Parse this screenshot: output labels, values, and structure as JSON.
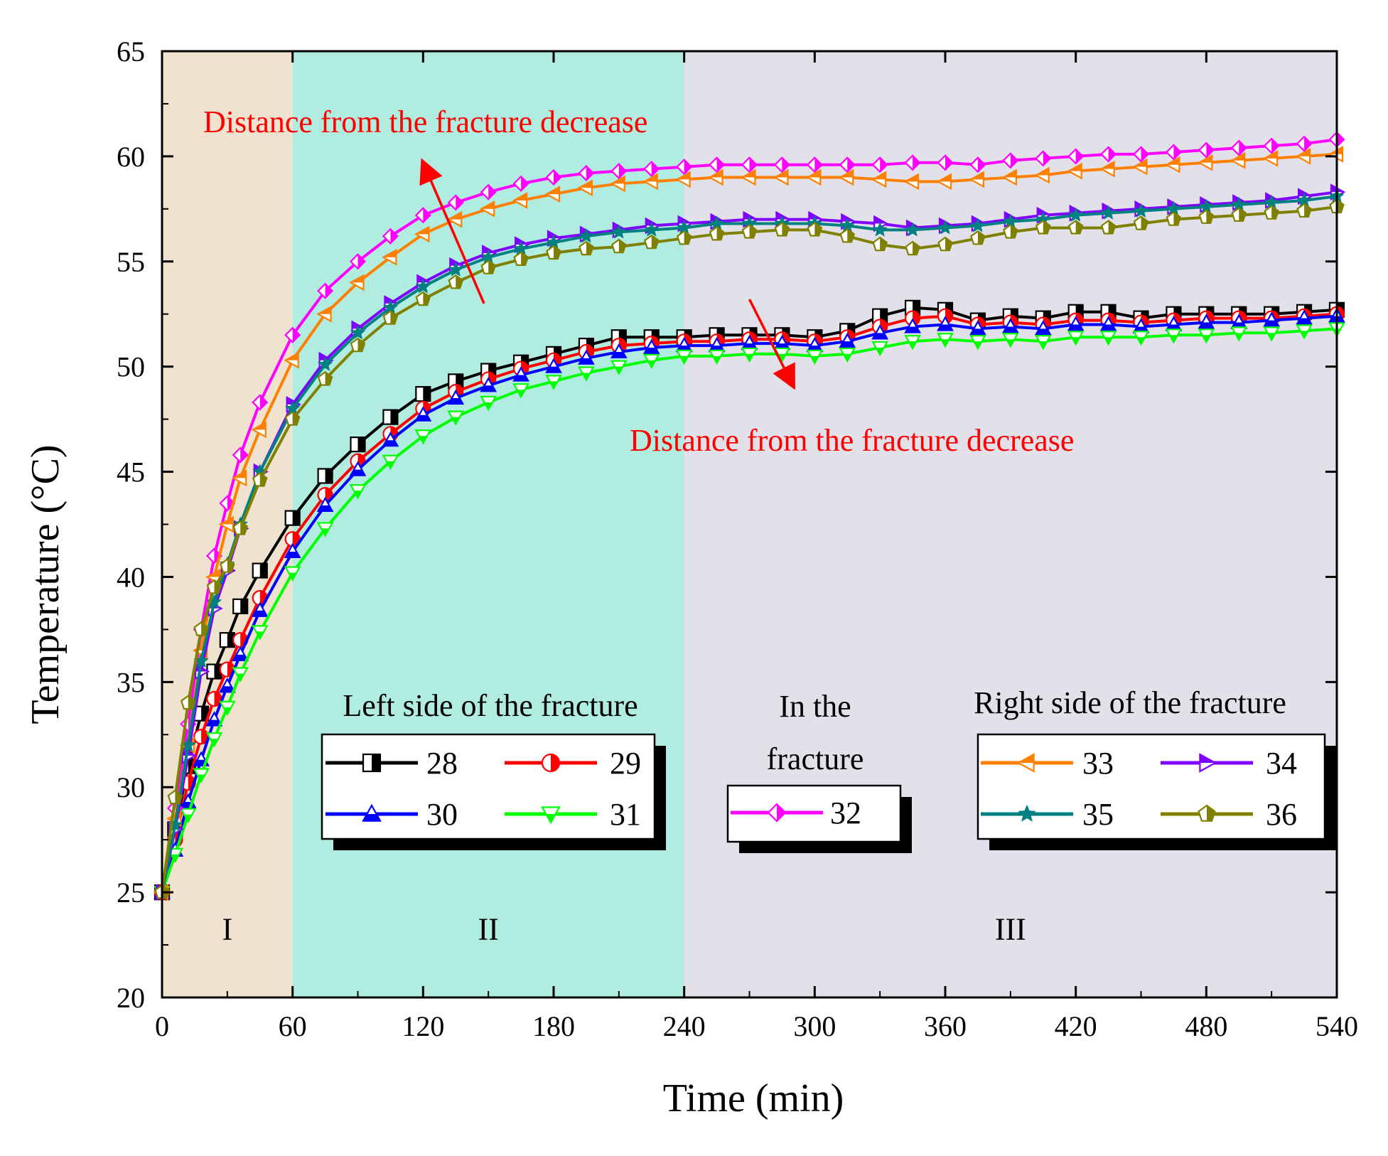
{
  "chart_data": {
    "type": "line",
    "title": "",
    "xlabel": "Time (min)",
    "ylabel": "Temperature (°C)",
    "xlim": [
      0,
      540
    ],
    "ylim": [
      20,
      65
    ],
    "xticks": [
      0,
      60,
      120,
      180,
      240,
      300,
      360,
      420,
      480,
      540
    ],
    "yticks": [
      20,
      25,
      30,
      35,
      40,
      45,
      50,
      55,
      60,
      65
    ],
    "xtick_labels": [
      "0",
      "60",
      "120",
      "180",
      "240",
      "300",
      "360",
      "420",
      "480",
      "540"
    ],
    "ytick_labels": [
      "20",
      "25",
      "30",
      "35",
      "40",
      "45",
      "50",
      "55",
      "60",
      "65"
    ],
    "regions": [
      {
        "label": "I",
        "start": 0,
        "end": 60,
        "color": "#efe2cf"
      },
      {
        "label": "II",
        "start": 60,
        "end": 240,
        "color": "#b0ece0"
      },
      {
        "label": "III",
        "start": 240,
        "end": 540,
        "color": "#e2e1ea"
      }
    ],
    "annotations": [
      {
        "text": "Distance from the fracture decrease",
        "color": "#ff0000",
        "arrow": "up",
        "arrow_from": [
          148,
          53
        ],
        "arrow_to": [
          120,
          59.7
        ]
      },
      {
        "text": "Distance from the fracture decrease",
        "color": "#ff0000",
        "arrow": "down",
        "arrow_from": [
          270,
          53.2
        ],
        "arrow_to": [
          290,
          49.1
        ]
      }
    ],
    "legend_groups": [
      {
        "title": "Left side of the fracture",
        "series": [
          "28",
          "29",
          "30",
          "31"
        ]
      },
      {
        "title": "In the fracture",
        "title_lines": [
          "In the",
          "fracture"
        ],
        "series": [
          "32"
        ]
      },
      {
        "title": "Right side of the fracture",
        "series": [
          "33",
          "34",
          "35",
          "36"
        ]
      }
    ],
    "series": [
      {
        "name": "28",
        "color": "#000000",
        "marker": "square-half",
        "x": [
          0,
          6,
          12,
          18,
          24,
          30,
          36,
          45,
          60,
          75,
          90,
          105,
          120,
          135,
          150,
          165,
          180,
          195,
          210,
          225,
          240,
          255,
          270,
          285,
          300,
          315,
          330,
          345,
          360,
          375,
          390,
          405,
          420,
          435,
          450,
          465,
          480,
          495,
          510,
          525,
          540
        ],
        "values": [
          25.0,
          28.0,
          31.0,
          33.5,
          35.5,
          37.0,
          38.6,
          40.3,
          42.8,
          44.8,
          46.3,
          47.6,
          48.7,
          49.3,
          49.8,
          50.2,
          50.6,
          51.0,
          51.4,
          51.4,
          51.4,
          51.5,
          51.5,
          51.5,
          51.4,
          51.7,
          52.4,
          52.8,
          52.7,
          52.2,
          52.4,
          52.3,
          52.6,
          52.6,
          52.3,
          52.5,
          52.5,
          52.5,
          52.5,
          52.6,
          52.7
        ]
      },
      {
        "name": "29",
        "color": "#ff0000",
        "marker": "circle-half",
        "x": [
          0,
          6,
          12,
          18,
          24,
          30,
          36,
          45,
          60,
          75,
          90,
          105,
          120,
          135,
          150,
          165,
          180,
          195,
          210,
          225,
          240,
          255,
          270,
          285,
          300,
          315,
          330,
          345,
          360,
          375,
          390,
          405,
          420,
          435,
          450,
          465,
          480,
          495,
          510,
          525,
          540
        ],
        "values": [
          25.0,
          27.5,
          30.2,
          32.4,
          34.2,
          35.6,
          37.0,
          39.0,
          41.8,
          43.9,
          45.5,
          46.8,
          48.0,
          48.8,
          49.4,
          49.9,
          50.3,
          50.7,
          51.0,
          51.1,
          51.2,
          51.2,
          51.3,
          51.3,
          51.2,
          51.4,
          51.9,
          52.3,
          52.4,
          52.0,
          52.1,
          52.0,
          52.2,
          52.2,
          52.1,
          52.2,
          52.3,
          52.3,
          52.3,
          52.4,
          52.5
        ]
      },
      {
        "name": "30",
        "color": "#0000ff",
        "marker": "triangle-up-half",
        "x": [
          0,
          6,
          12,
          18,
          24,
          30,
          36,
          45,
          60,
          75,
          90,
          105,
          120,
          135,
          150,
          165,
          180,
          195,
          210,
          225,
          240,
          255,
          270,
          285,
          300,
          315,
          330,
          345,
          360,
          375,
          390,
          405,
          420,
          435,
          450,
          465,
          480,
          495,
          510,
          525,
          540
        ],
        "values": [
          25.0,
          27.0,
          29.3,
          31.3,
          33.2,
          34.8,
          36.3,
          38.4,
          41.2,
          43.4,
          45.1,
          46.5,
          47.7,
          48.5,
          49.1,
          49.6,
          50.0,
          50.4,
          50.7,
          50.9,
          51.0,
          51.0,
          51.1,
          51.1,
          51.0,
          51.2,
          51.6,
          51.9,
          52.0,
          51.8,
          51.9,
          51.8,
          52.0,
          52.0,
          51.9,
          52.0,
          52.1,
          52.1,
          52.2,
          52.3,
          52.4
        ]
      },
      {
        "name": "31",
        "color": "#00ff00",
        "marker": "triangle-down-half",
        "x": [
          0,
          6,
          12,
          18,
          24,
          30,
          36,
          45,
          60,
          75,
          90,
          105,
          120,
          135,
          150,
          165,
          180,
          195,
          210,
          225,
          240,
          255,
          270,
          285,
          300,
          315,
          330,
          345,
          360,
          375,
          390,
          405,
          420,
          435,
          450,
          465,
          480,
          495,
          510,
          525,
          540
        ],
        "values": [
          25.0,
          26.8,
          28.7,
          30.6,
          32.3,
          33.8,
          35.4,
          37.4,
          40.2,
          42.3,
          44.1,
          45.5,
          46.7,
          47.6,
          48.3,
          48.9,
          49.3,
          49.7,
          50.0,
          50.3,
          50.5,
          50.5,
          50.6,
          50.6,
          50.5,
          50.6,
          50.9,
          51.2,
          51.3,
          51.2,
          51.3,
          51.2,
          51.4,
          51.4,
          51.4,
          51.5,
          51.5,
          51.6,
          51.6,
          51.7,
          51.8
        ]
      },
      {
        "name": "32",
        "color": "#ff00ff",
        "marker": "diamond-half",
        "x": [
          0,
          6,
          12,
          18,
          24,
          30,
          36,
          45,
          60,
          75,
          90,
          105,
          120,
          135,
          150,
          165,
          180,
          195,
          210,
          225,
          240,
          255,
          270,
          285,
          300,
          315,
          330,
          345,
          360,
          375,
          390,
          405,
          420,
          435,
          450,
          465,
          480,
          495,
          510,
          525,
          540
        ],
        "values": [
          25.0,
          29.0,
          33.0,
          37.5,
          41.0,
          43.5,
          45.8,
          48.3,
          51.5,
          53.6,
          55.0,
          56.2,
          57.2,
          57.8,
          58.3,
          58.7,
          59.0,
          59.2,
          59.3,
          59.4,
          59.5,
          59.6,
          59.6,
          59.6,
          59.6,
          59.6,
          59.6,
          59.7,
          59.7,
          59.6,
          59.8,
          59.9,
          60.0,
          60.1,
          60.1,
          60.2,
          60.3,
          60.4,
          60.5,
          60.6,
          60.8
        ]
      },
      {
        "name": "33",
        "color": "#ff8000",
        "marker": "triangle-left-half",
        "x": [
          0,
          6,
          12,
          18,
          24,
          30,
          36,
          45,
          60,
          75,
          90,
          105,
          120,
          135,
          150,
          165,
          180,
          195,
          210,
          225,
          240,
          255,
          270,
          285,
          300,
          315,
          330,
          345,
          360,
          375,
          390,
          405,
          420,
          435,
          450,
          465,
          480,
          495,
          510,
          525,
          540
        ],
        "values": [
          25.0,
          28.5,
          32.0,
          36.5,
          40.0,
          42.5,
          44.7,
          47.0,
          50.3,
          52.5,
          54.0,
          55.2,
          56.3,
          57.0,
          57.5,
          57.9,
          58.2,
          58.5,
          58.7,
          58.8,
          58.9,
          59.0,
          59.0,
          59.0,
          59.0,
          59.0,
          58.9,
          58.8,
          58.8,
          58.9,
          59.0,
          59.1,
          59.3,
          59.4,
          59.5,
          59.6,
          59.7,
          59.8,
          59.9,
          60.0,
          60.1
        ]
      },
      {
        "name": "34",
        "color": "#8000ff",
        "marker": "triangle-right-half",
        "x": [
          0,
          6,
          12,
          18,
          24,
          30,
          36,
          45,
          60,
          75,
          90,
          105,
          120,
          135,
          150,
          165,
          180,
          195,
          210,
          225,
          240,
          255,
          270,
          285,
          300,
          315,
          330,
          345,
          360,
          375,
          390,
          405,
          420,
          435,
          450,
          465,
          480,
          495,
          510,
          525,
          540
        ],
        "values": [
          25.0,
          28.0,
          31.5,
          35.5,
          38.5,
          40.3,
          42.3,
          45.0,
          48.2,
          50.3,
          51.8,
          53.0,
          54.0,
          54.8,
          55.4,
          55.8,
          56.1,
          56.3,
          56.5,
          56.7,
          56.8,
          56.9,
          57.0,
          57.0,
          57.0,
          56.9,
          56.8,
          56.6,
          56.7,
          56.8,
          57.0,
          57.2,
          57.3,
          57.4,
          57.5,
          57.6,
          57.7,
          57.8,
          57.9,
          58.1,
          58.3
        ]
      },
      {
        "name": "35",
        "color": "#008080",
        "marker": "star",
        "x": [
          0,
          6,
          12,
          18,
          24,
          30,
          36,
          45,
          60,
          75,
          90,
          105,
          120,
          135,
          150,
          165,
          180,
          195,
          210,
          225,
          240,
          255,
          270,
          285,
          300,
          315,
          330,
          345,
          360,
          375,
          390,
          405,
          420,
          435,
          450,
          465,
          480,
          495,
          510,
          525,
          540
        ],
        "values": [
          25.0,
          28.2,
          32.0,
          36.0,
          38.8,
          40.6,
          42.5,
          45.0,
          48.0,
          50.1,
          51.6,
          52.8,
          53.8,
          54.6,
          55.2,
          55.6,
          55.9,
          56.2,
          56.4,
          56.5,
          56.6,
          56.8,
          56.8,
          56.8,
          56.8,
          56.7,
          56.5,
          56.5,
          56.6,
          56.7,
          56.9,
          57.0,
          57.2,
          57.3,
          57.4,
          57.5,
          57.6,
          57.7,
          57.8,
          57.9,
          58.1
        ]
      },
      {
        "name": "36",
        "color": "#808000",
        "marker": "pentagon-half",
        "x": [
          0,
          6,
          12,
          18,
          24,
          30,
          36,
          45,
          60,
          75,
          90,
          105,
          120,
          135,
          150,
          165,
          180,
          195,
          210,
          225,
          240,
          255,
          270,
          285,
          300,
          315,
          330,
          345,
          360,
          375,
          390,
          405,
          420,
          435,
          450,
          465,
          480,
          495,
          510,
          525,
          540
        ],
        "values": [
          25.0,
          29.5,
          34.0,
          37.5,
          39.5,
          40.5,
          42.3,
          44.6,
          47.5,
          49.4,
          51.0,
          52.3,
          53.2,
          54.0,
          54.7,
          55.1,
          55.4,
          55.6,
          55.7,
          55.9,
          56.1,
          56.3,
          56.4,
          56.5,
          56.5,
          56.2,
          55.8,
          55.6,
          55.8,
          56.1,
          56.4,
          56.6,
          56.6,
          56.6,
          56.8,
          57.0,
          57.1,
          57.2,
          57.3,
          57.4,
          57.6
        ]
      }
    ]
  }
}
